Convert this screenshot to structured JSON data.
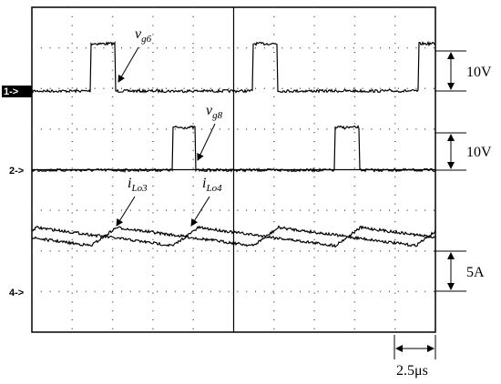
{
  "channel_markers": [
    "1->",
    "2->",
    "4->"
  ],
  "labels": {
    "vg6": {
      "main": "v",
      "sub": "g6"
    },
    "vg8": {
      "main": "v",
      "sub": "g8"
    },
    "iLo3": {
      "main": "i",
      "sub": "Lo3"
    },
    "iLo4": {
      "main": "i",
      "sub": "Lo4"
    }
  },
  "scales": {
    "ch1": "10V",
    "ch2": "10V",
    "ch4": "5A",
    "time": "2.5μs"
  }
}
